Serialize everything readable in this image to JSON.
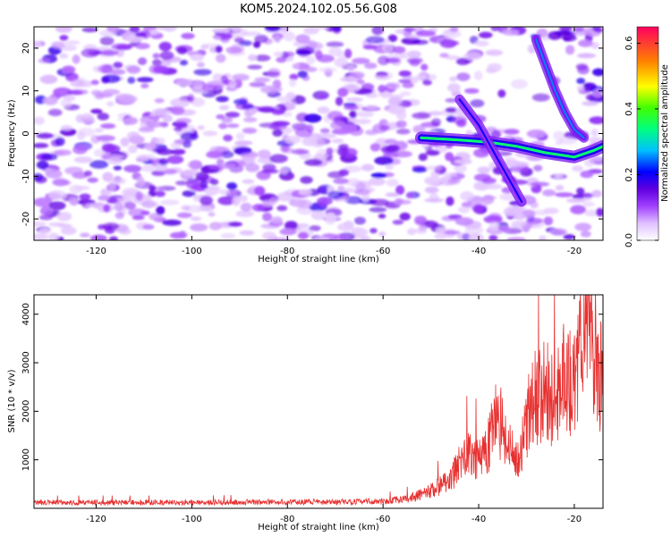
{
  "title": "KOM5.2024.102.05.56.G08",
  "chart_data": [
    {
      "type": "heatmap",
      "title": "KOM5.2024.102.05.56.G08",
      "xlabel": "Height of straight line (km)",
      "ylabel": "Frequency (Hz)",
      "xlim": [
        -133,
        -14
      ],
      "ylim": [
        -25,
        25
      ],
      "x_ticks": [
        -120,
        -100,
        -80,
        -60,
        -40,
        -20
      ],
      "y_ticks": [
        20,
        10,
        0,
        -10,
        -20
      ],
      "colorbar": {
        "label": "Normalized spectral amplitude",
        "range": [
          0.0,
          0.65
        ],
        "ticks": [
          0.0,
          0.2,
          0.4,
          0.6
        ],
        "colormap": [
          "#ffffff",
          "#c070ff",
          "#7000e0",
          "#0000ff",
          "#00c0ff",
          "#00ff80",
          "#80ff00",
          "#ffff00",
          "#ff8000",
          "#ff0040"
        ]
      },
      "features": [
        {
          "name": "main trace",
          "x": [
            -52,
            -44,
            -38,
            -32,
            -26,
            -20,
            -16,
            -14
          ],
          "y": [
            -1,
            -1.5,
            -2,
            -3,
            -4.5,
            -5.5,
            -4,
            -3
          ],
          "amplitude": 0.35
        },
        {
          "name": "rising streak",
          "x": [
            -28,
            -26,
            -24,
            -22,
            -20,
            -18
          ],
          "y": [
            22,
            16,
            10,
            5,
            1,
            -1
          ],
          "amplitude": 0.25
        },
        {
          "name": "descending streak",
          "x": [
            -44,
            -40,
            -36,
            -33,
            -31
          ],
          "y": [
            8,
            2,
            -6,
            -12,
            -16
          ],
          "amplitude": 0.2
        }
      ],
      "background": "diffuse purple noise across all heights, amplitude 0.05-0.2"
    },
    {
      "type": "line",
      "title": "",
      "xlabel": "Height of straight line (km)",
      "ylabel": "SNR (10 * v/v)",
      "xlim": [
        -133,
        -14
      ],
      "ylim": [
        0,
        4400
      ],
      "x_ticks": [
        -120,
        -100,
        -80,
        -60,
        -40,
        -20
      ],
      "y_ticks": [
        1000,
        2000,
        3000,
        4000
      ],
      "color": "#e83030",
      "envelope": {
        "x": [
          -133,
          -120,
          -100,
          -80,
          -60,
          -55,
          -50,
          -46,
          -44,
          -42,
          -40,
          -38,
          -36,
          -34,
          -32,
          -30,
          -28,
          -26,
          -24,
          -22,
          -20,
          -18,
          -17,
          -16,
          -15,
          -14
        ],
        "y": [
          120,
          120,
          120,
          130,
          140,
          200,
          350,
          600,
          900,
          1100,
          1000,
          1300,
          1900,
          1500,
          900,
          1800,
          2300,
          2400,
          2200,
          2700,
          2600,
          3600,
          3900,
          3000,
          2800,
          3000
        ]
      }
    }
  ]
}
